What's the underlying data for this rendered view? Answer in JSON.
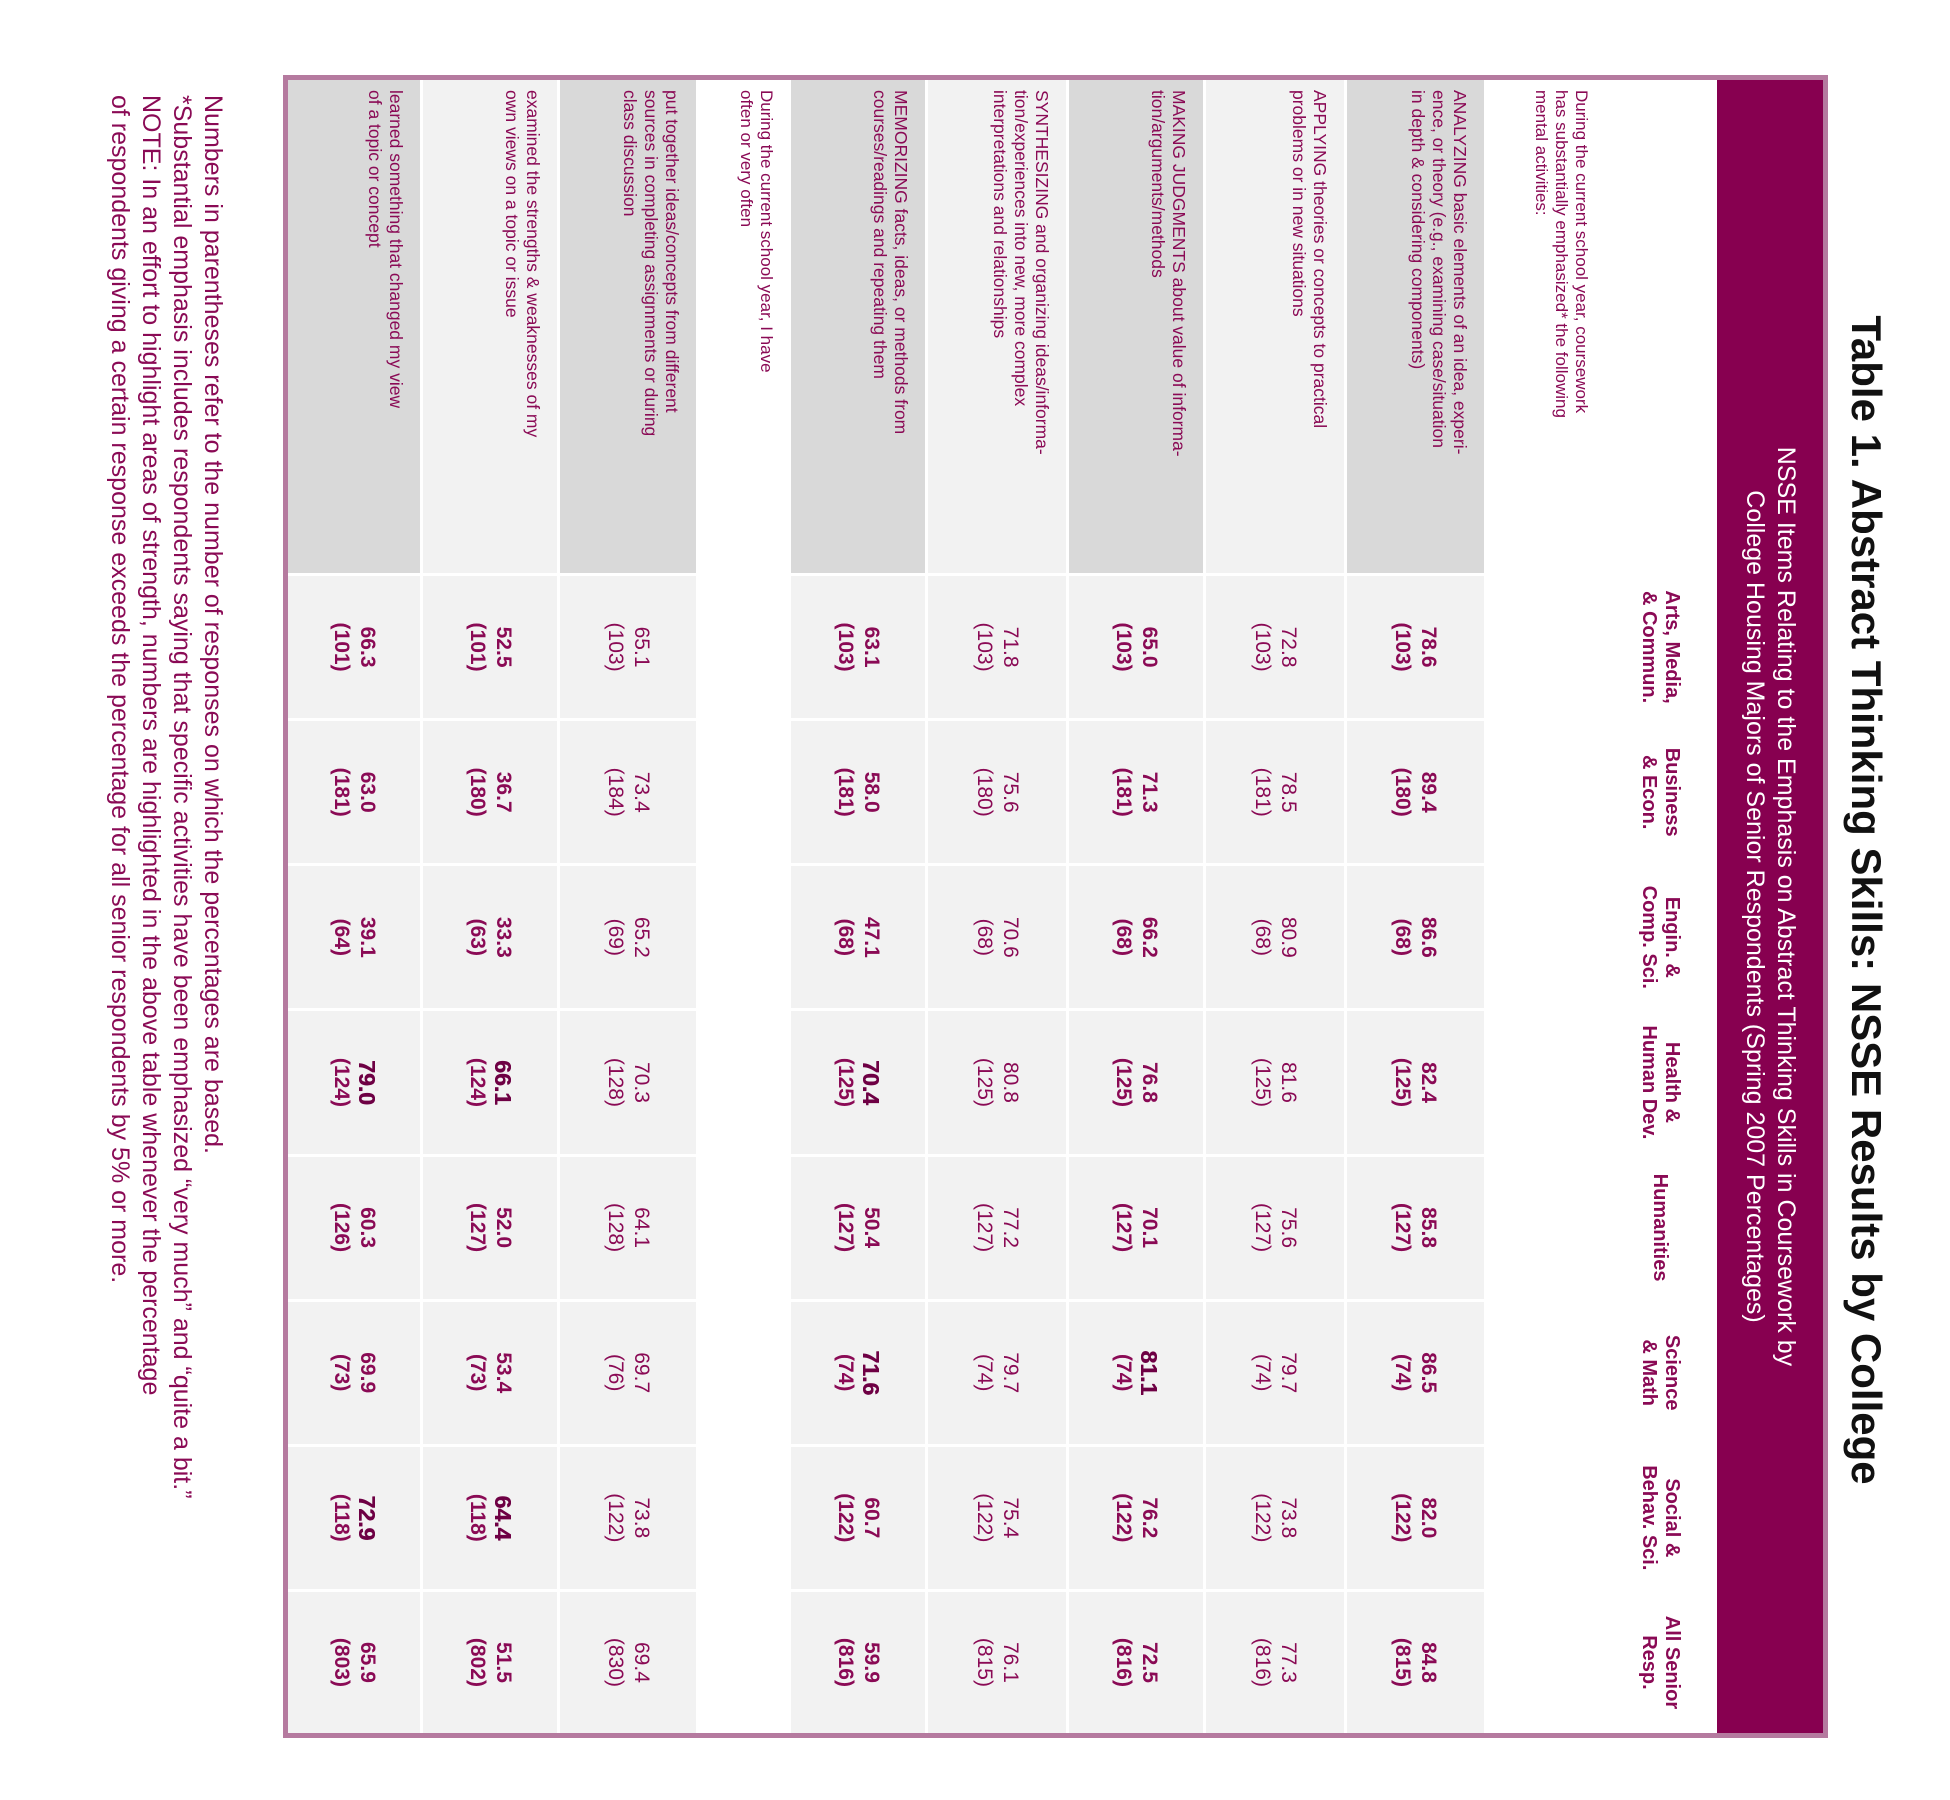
{
  "title": "Table 1. Abstract Thinking Skills: NSSE Results by College",
  "subtitle": "NSSE Items Relating to the Emphasis on Abstract Thinking Skills in Coursework by\nCollege Housing Majors of Senior Respondents (Spring 2007 Percentages)",
  "table": {
    "columns": [
      "Arts, Media,\n& Commun.",
      "Business\n& Econ.",
      "Engin. &\nComp. Sci.",
      "Health &\nHuman Dev.",
      "Humanities",
      "Science\n& Math",
      "Social &\nBehav. Sci.",
      "All Senior\nResp."
    ],
    "sections": [
      {
        "heading": "During the current school year, coursework\nhas substantially emphasized* the following\nmental activities:",
        "rows": [
          {
            "label": "ANALYZING basic elements of an idea, experi-\nence, or theory (e.g., examining case/situation\nin depth & considering components)",
            "bold": true,
            "cells": [
              {
                "pct": "78.6",
                "n": "(103)"
              },
              {
                "pct": "89.4",
                "n": "(180)"
              },
              {
                "pct": "86.6",
                "n": "(68)"
              },
              {
                "pct": "82.4",
                "n": "(125)"
              },
              {
                "pct": "85.8",
                "n": "(127)"
              },
              {
                "pct": "86.5",
                "n": "(74)"
              },
              {
                "pct": "82.0",
                "n": "(122)"
              },
              {
                "pct": "84.8",
                "n": "(815)"
              }
            ]
          },
          {
            "label": "APPLYING theories or concepts to practical\nproblems or in new situations",
            "bold": false,
            "cells": [
              {
                "pct": "72.8",
                "n": "(103)"
              },
              {
                "pct": "78.5",
                "n": "(181)"
              },
              {
                "pct": "80.9",
                "n": "(68)"
              },
              {
                "pct": "81.6",
                "n": "(125)"
              },
              {
                "pct": "75.6",
                "n": "(127)"
              },
              {
                "pct": "79.7",
                "n": "(74)"
              },
              {
                "pct": "73.8",
                "n": "(122)"
              },
              {
                "pct": "77.3",
                "n": "(816)"
              }
            ]
          },
          {
            "label": "MAKING JUDGMENTS about value of informa-\ntion/arguments/methods",
            "bold": true,
            "cells": [
              {
                "pct": "65.0",
                "n": "(103)"
              },
              {
                "pct": "71.3",
                "n": "(181)"
              },
              {
                "pct": "66.2",
                "n": "(68)"
              },
              {
                "pct": "76.8",
                "n": "(125)"
              },
              {
                "pct": "70.1",
                "n": "(127)"
              },
              {
                "pct": "81.1",
                "n": "(74)",
                "highlight": true
              },
              {
                "pct": "76.2",
                "n": "(122)"
              },
              {
                "pct": "72.5",
                "n": "(816)"
              }
            ]
          },
          {
            "label": "SYNTHESIZING and organizing ideas/informa-\ntion/experiences into new, more complex\ninterpretations and relationships",
            "bold": false,
            "cells": [
              {
                "pct": "71.8",
                "n": "(103)"
              },
              {
                "pct": "75.6",
                "n": "(180)"
              },
              {
                "pct": "70.6",
                "n": "(68)"
              },
              {
                "pct": "80.8",
                "n": "(125)"
              },
              {
                "pct": "77.2",
                "n": "(127)"
              },
              {
                "pct": "79.7",
                "n": "(74)"
              },
              {
                "pct": "75.4",
                "n": "(122)"
              },
              {
                "pct": "76.1",
                "n": "(815)"
              }
            ]
          },
          {
            "label": "MEMORIZING facts, ideas, or methods from\ncourses/readings and repeating them",
            "bold": true,
            "cells": [
              {
                "pct": "63.1",
                "n": "(103)"
              },
              {
                "pct": "58.0",
                "n": "(181)"
              },
              {
                "pct": "47.1",
                "n": "(68)"
              },
              {
                "pct": "70.4",
                "n": "(125)",
                "highlight": true
              },
              {
                "pct": "50.4",
                "n": "(127)"
              },
              {
                "pct": "71.6",
                "n": "(74)",
                "highlight": true
              },
              {
                "pct": "60.7",
                "n": "(122)"
              },
              {
                "pct": "59.9",
                "n": "(816)"
              }
            ]
          }
        ]
      },
      {
        "heading": "During the current school year, I have\noften or very often",
        "rows": [
          {
            "label": "put together ideas/concepts from different\nsources in completing assignments or during\nclass discussion",
            "bold": false,
            "cells": [
              {
                "pct": "65.1",
                "n": "(103)"
              },
              {
                "pct": "73.4",
                "n": "(184)"
              },
              {
                "pct": "65.2",
                "n": "(69)"
              },
              {
                "pct": "70.3",
                "n": "(128)"
              },
              {
                "pct": "64.1",
                "n": "(128)"
              },
              {
                "pct": "69.7",
                "n": "(76)"
              },
              {
                "pct": "73.8",
                "n": "(122)"
              },
              {
                "pct": "69.4",
                "n": "(830)"
              }
            ]
          },
          {
            "label": "examined the strengths & weaknesses of my\nown views on a topic or issue",
            "bold": true,
            "cells": [
              {
                "pct": "52.5",
                "n": "(101)"
              },
              {
                "pct": "36.7",
                "n": "(180)"
              },
              {
                "pct": "33.3",
                "n": "(63)"
              },
              {
                "pct": "66.1",
                "n": "(124)",
                "highlight": true
              },
              {
                "pct": "52.0",
                "n": "(127)"
              },
              {
                "pct": "53.4",
                "n": "(73)"
              },
              {
                "pct": "64.4",
                "n": "(118)",
                "highlight": true
              },
              {
                "pct": "51.5",
                "n": "(802)"
              }
            ]
          },
          {
            "label": "learned something that changed my view\nof a topic or concept",
            "bold": true,
            "cells": [
              {
                "pct": "66.3",
                "n": "(101)"
              },
              {
                "pct": "63.0",
                "n": "(181)"
              },
              {
                "pct": "39.1",
                "n": "(64)"
              },
              {
                "pct": "79.0",
                "n": "(124)",
                "highlight": true
              },
              {
                "pct": "60.3",
                "n": "(126)"
              },
              {
                "pct": "69.9",
                "n": "(73)"
              },
              {
                "pct": "72.9",
                "n": "(118)",
                "highlight": true
              },
              {
                "pct": "65.9",
                "n": "(803)"
              }
            ]
          }
        ]
      }
    ]
  },
  "notes": [
    "Numbers in parentheses refer to the number of responses on which the percentages are based.",
    "*Substantial emphasis includes respondents saying that specific activities have been emphasized “very much” and “quite a bit.”",
    "NOTE: In an effort to highlight areas of strength, numbers are highlighted in the above table whenever the percentage\nof respondents giving a certain response exceeds the percentage for all senior respondents by 5% or more."
  ]
}
